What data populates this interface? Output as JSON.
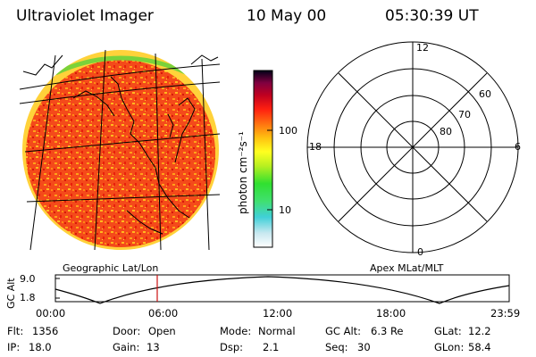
{
  "header": {
    "title": "Ultraviolet Imager",
    "date": "10 May 00",
    "time": "05:30:39 UT"
  },
  "colorbar": {
    "unit": "photon cm⁻²s⁻¹",
    "ticks": [
      "100",
      "10"
    ]
  },
  "polar": {
    "mlt_labels": [
      "12",
      "18",
      "6",
      "0"
    ],
    "mlat_labels": [
      "60",
      "70",
      "80"
    ]
  },
  "panels": {
    "left_caption": "Geographic Lat/Lon",
    "right_caption": "Apex MLat/MLT"
  },
  "altitude_plot": {
    "ylabel": "GC Alt",
    "y_ticks": [
      "9.0",
      "1.8"
    ],
    "x_ticks": [
      "00:00",
      "06:00",
      "12:00",
      "18:00",
      "23:59"
    ],
    "marker_time": "05:30:39"
  },
  "status": {
    "flt_label": "Flt:",
    "flt_value": "1356",
    "ip_label": "IP:",
    "ip_value": "18.0",
    "door_label": "Door:",
    "door_value": "Open",
    "gain_label": "Gain:",
    "gain_value": "13",
    "mode_label": "Mode:",
    "mode_value": "Normal",
    "dsp_label": "Dsp:",
    "dsp_value": "2.1",
    "gcalt_label": "GC Alt:",
    "gcalt_value": "6.3 Re",
    "seq_label": "Seq:",
    "seq_value": "30",
    "glat_label": "GLat:",
    "glat_value": "12.2",
    "glon_label": "GLon:",
    "glon_value": "58.4"
  }
}
